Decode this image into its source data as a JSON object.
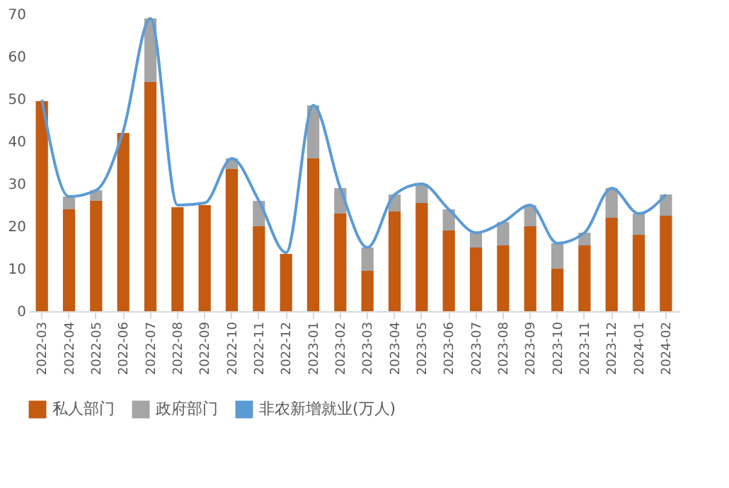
{
  "chart_data": {
    "type": "bar",
    "stacked": true,
    "categories": [
      "2022-03",
      "2022-04",
      "2022-05",
      "2022-06",
      "2022-07",
      "2022-08",
      "2022-09",
      "2022-10",
      "2022-11",
      "2022-12",
      "2023-01",
      "2023-02",
      "2023-03",
      "2023-04",
      "2023-05",
      "2023-06",
      "2023-07",
      "2023-08",
      "2023-09",
      "2023-10",
      "2023-11",
      "2023-12",
      "2024-01",
      "2024-02"
    ],
    "series": [
      {
        "name": "私人部门",
        "color": "#c55a11",
        "values": [
          49.5,
          24,
          26,
          42,
          54,
          24.5,
          25,
          33.5,
          20,
          13.5,
          36,
          23,
          9.5,
          23.5,
          25.5,
          19,
          15,
          15.5,
          20,
          10,
          15.5,
          22,
          18,
          22.5
        ]
      },
      {
        "name": "政府部门",
        "color": "#a5a5a5",
        "values": [
          null,
          3,
          2.5,
          null,
          15,
          null,
          null,
          2.5,
          6,
          null,
          12.5,
          6,
          5.5,
          4,
          4.5,
          5,
          3.5,
          5.5,
          5,
          6,
          3,
          7,
          5,
          5
        ]
      },
      {
        "name": "非农新增就业(万人)",
        "type": "line",
        "color": "#5b9bd5",
        "values": [
          49.8,
          27,
          28.5,
          42.5,
          69,
          25,
          25.5,
          36,
          26,
          13.8,
          48.5,
          29,
          15,
          27.5,
          30,
          24,
          18.5,
          21,
          25,
          16,
          18.5,
          29,
          23,
          27.5
        ]
      }
    ],
    "ylim": [
      0,
      70
    ],
    "yticks": [
      0,
      10,
      20,
      30,
      40,
      50,
      60,
      70
    ],
    "grid": false,
    "legend": "bottom",
    "line_style": "solid",
    "marker": "none"
  }
}
